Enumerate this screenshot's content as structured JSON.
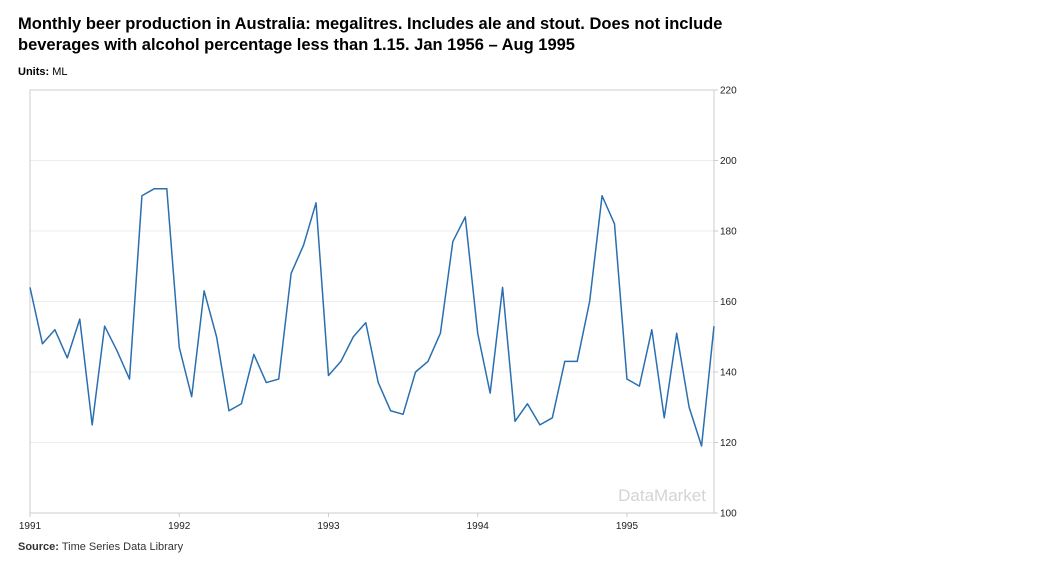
{
  "header": {
    "title": "Monthly beer production in Australia: megalitres. Includes ale and stout. Does not include beverages with alcohol percentage less than 1.15. Jan 1956 – Aug 1995",
    "units_label": "Units:",
    "units_value": "ML"
  },
  "footer": {
    "source_label": "Source:",
    "source_value": "Time Series Data Library"
  },
  "watermark": "DataMarket",
  "colors": {
    "line": "#2a6fb0",
    "grid": "#ececec",
    "frame": "#cccccc"
  },
  "chart_data": {
    "type": "line",
    "title": "Monthly beer production in Australia: megalitres. Includes ale and stout. Does not include beverages with alcohol percentage less than 1.15. Jan 1956 – Aug 1995",
    "xlabel": "",
    "ylabel": "",
    "units": "ML",
    "ylim": [
      100,
      220
    ],
    "y_axis_position": "right",
    "y_ticks": [
      100,
      120,
      140,
      160,
      180,
      200,
      220
    ],
    "x_tick_labels": [
      "1991",
      "1992",
      "1993",
      "1994",
      "1995"
    ],
    "grid": true,
    "legend": "none",
    "x_start": "1991-01",
    "x_end": "1995-08",
    "x": [
      "1991-01",
      "1991-02",
      "1991-03",
      "1991-04",
      "1991-05",
      "1991-06",
      "1991-07",
      "1991-08",
      "1991-09",
      "1991-10",
      "1991-11",
      "1991-12",
      "1992-01",
      "1992-02",
      "1992-03",
      "1992-04",
      "1992-05",
      "1992-06",
      "1992-07",
      "1992-08",
      "1992-09",
      "1992-10",
      "1992-11",
      "1992-12",
      "1993-01",
      "1993-02",
      "1993-03",
      "1993-04",
      "1993-05",
      "1993-06",
      "1993-07",
      "1993-08",
      "1993-09",
      "1993-10",
      "1993-11",
      "1993-12",
      "1994-01",
      "1994-02",
      "1994-03",
      "1994-04",
      "1994-05",
      "1994-06",
      "1994-07",
      "1994-08",
      "1994-09",
      "1994-10",
      "1994-11",
      "1994-12",
      "1995-01",
      "1995-02",
      "1995-03",
      "1995-04",
      "1995-05",
      "1995-06",
      "1995-07",
      "1995-08"
    ],
    "series": [
      {
        "values": [
          164,
          148,
          152,
          144,
          155,
          125,
          153,
          146,
          138,
          190,
          192,
          192,
          147,
          133,
          163,
          150,
          129,
          131,
          145,
          137,
          138,
          168,
          176,
          188,
          139,
          143,
          150,
          154,
          137,
          129,
          128,
          140,
          143,
          151,
          177,
          184,
          151,
          134,
          164,
          126,
          131,
          125,
          127,
          143,
          143,
          160,
          190,
          182,
          138,
          136,
          152,
          127,
          151,
          130,
          119,
          153
        ]
      }
    ]
  }
}
